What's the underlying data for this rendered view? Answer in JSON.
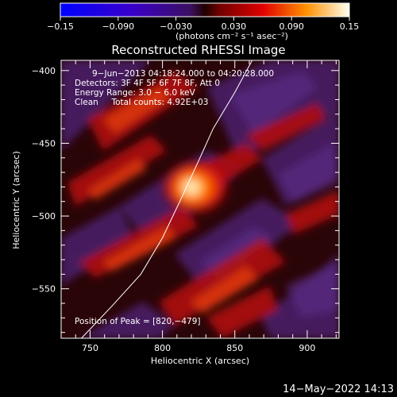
{
  "colorbar": {
    "ticks": [
      -0.15,
      -0.09,
      -0.03,
      0.03,
      0.09,
      0.15
    ],
    "tick_labels": [
      "−0.15",
      "−0.090",
      "−0.030",
      "0.030",
      "0.090",
      "0.15"
    ],
    "unit_label": "(photons cm⁻² s⁻¹ asec⁻²)",
    "range": [
      -0.15,
      0.15
    ]
  },
  "chart_data": {
    "type": "heatmap",
    "title": "Reconstructed RHESSI Image",
    "xlabel": "Heliocentric X (arcsec)",
    "ylabel": "Heliocentric Y (arcsec)",
    "xlim": [
      730,
      922
    ],
    "ylim": [
      -584,
      -393
    ],
    "xticks": [
      750,
      800,
      850,
      900
    ],
    "yticks": [
      -400,
      -450,
      -500,
      -550
    ],
    "xtick_labels": [
      "750",
      "800",
      "850",
      "900"
    ],
    "ytick_labels": [
      "−400",
      "−450",
      "−500",
      "−550"
    ],
    "annotations": [
      "9−Jun−2013 04:18:24.000 to 04:20:28.000",
      "Detectors: 3F 4F 5F 6F 7F 8F, Att 0",
      "Energy Range: 3.0 − 6.0 keV",
      "Clean     Total counts: 4.92E+03"
    ],
    "peak_label": "Position of Peak = [820,−479]",
    "peak": {
      "x": 820,
      "y": -479,
      "value": 0.15
    },
    "limb_curve": [
      [
        862,
        -393
      ],
      [
        850,
        -415
      ],
      [
        835,
        -440
      ],
      [
        825,
        -462
      ],
      [
        812,
        -490
      ],
      [
        800,
        -515
      ],
      [
        785,
        -540
      ],
      [
        765,
        -562
      ],
      [
        744,
        -584
      ]
    ]
  },
  "timestamp": "14−May−2022 14:13"
}
